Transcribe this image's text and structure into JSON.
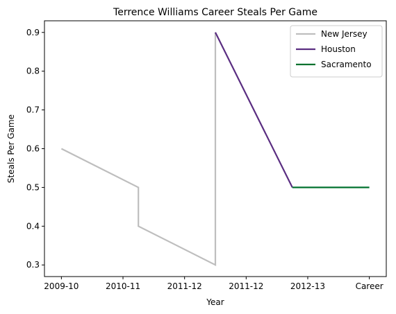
{
  "chart_data": {
    "type": "line",
    "title": "Terrence Williams Career Steals Per Game",
    "xlabel": "Year",
    "ylabel": "Steals Per Game",
    "x_tick_labels": [
      "2009-10",
      "2010-11",
      "2011-12",
      "2011-12",
      "2012-13",
      "Career"
    ],
    "ylim": [
      0.27,
      0.93
    ],
    "y_ticks": [
      0.3,
      0.4,
      0.5,
      0.6,
      0.7,
      0.8,
      0.9
    ],
    "grid": false,
    "legend_position": "top-right",
    "series": [
      {
        "name": "New Jersey",
        "color": "#bebebe",
        "points": [
          {
            "x": 0.0,
            "y": 0.6
          },
          {
            "x": 1.0,
            "y": 0.5
          },
          {
            "x": 1.0,
            "y": 0.4
          },
          {
            "x": 2.0,
            "y": 0.3
          },
          {
            "x": 2.0,
            "y": 0.9
          }
        ]
      },
      {
        "name": "Houston",
        "color": "#5a2d81",
        "points": [
          {
            "x": 2.0,
            "y": 0.9
          },
          {
            "x": 3.0,
            "y": 0.5
          }
        ]
      },
      {
        "name": "Sacramento",
        "color": "#00712e",
        "points": [
          {
            "x": 3.0,
            "y": 0.5
          },
          {
            "x": 4.0,
            "y": 0.5
          }
        ]
      }
    ]
  }
}
